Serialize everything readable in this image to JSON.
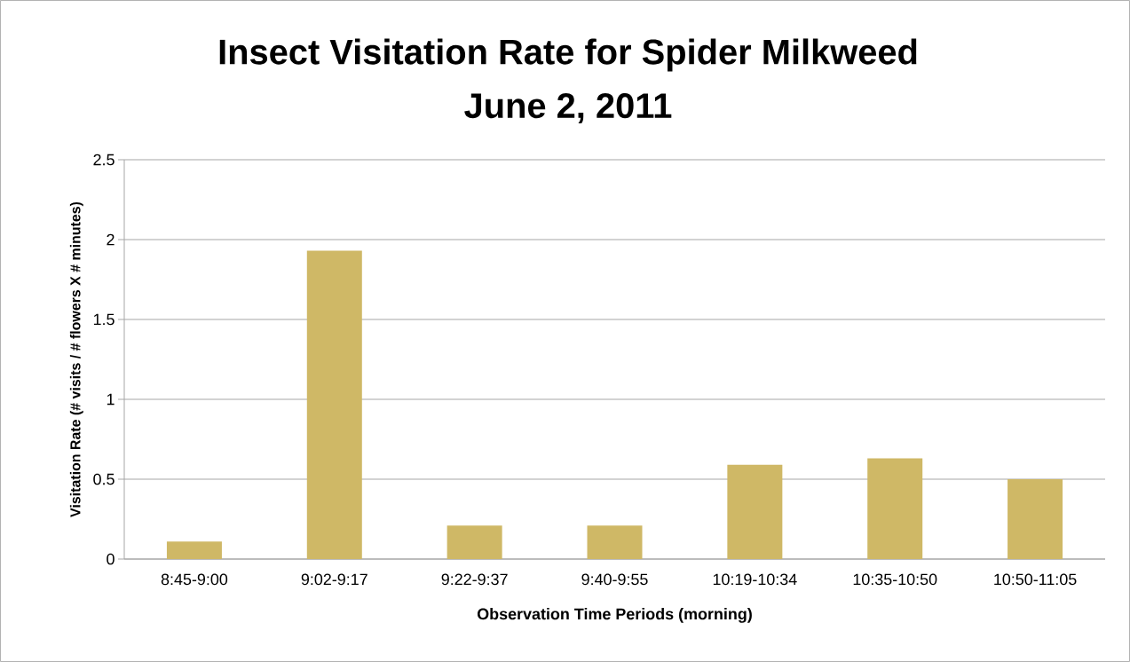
{
  "chart_data": {
    "type": "bar",
    "title": "Insect Visitation Rate for Spider Milkweed",
    "subtitle": "June 2, 2011",
    "xlabel": "Observation Time Periods (morning)",
    "ylabel": "Visitation Rate (# visits / # flowers X # minutes)",
    "categories": [
      "8:45-9:00",
      "9:02-9:17",
      "9:22-9:37",
      "9:40-9:55",
      "10:19-10:34",
      "10:35-10:50",
      "10:50-11:05"
    ],
    "values": [
      0.11,
      1.93,
      0.21,
      0.21,
      0.59,
      0.63,
      0.5
    ],
    "color": "#cfb866",
    "ylim": [
      0,
      2.5
    ],
    "yticks": [
      0,
      0.5,
      1,
      1.5,
      2,
      2.5
    ],
    "grid": "y"
  }
}
